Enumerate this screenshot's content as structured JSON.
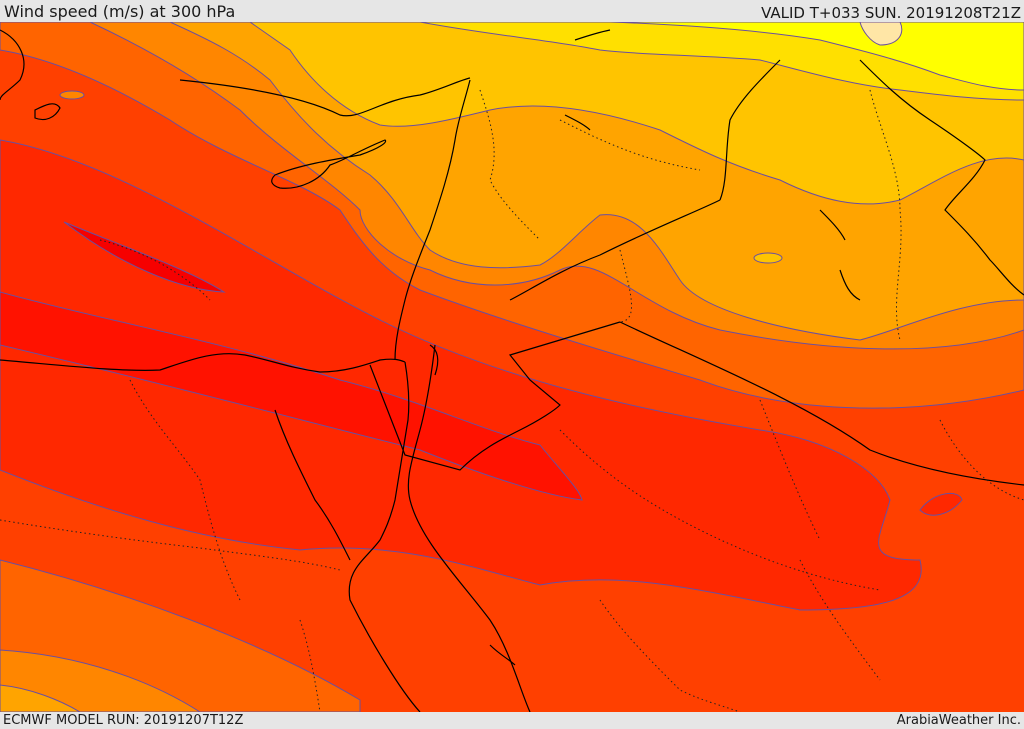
{
  "header": {
    "title": "Wind speed (m/s) at 300 hPa",
    "valid": "VALID T+033 SUN. 20191208T21Z"
  },
  "footer": {
    "model_run": "ECMWF MODEL RUN: 20191207T12Z",
    "brand": "ArabiaWeather Inc."
  },
  "map": {
    "parameter": "wind speed",
    "units": "m/s",
    "pressure_level_hPa": 300,
    "colors": {
      "very_light": "#ffff00",
      "light": "#ffe000",
      "pale_gold": "#ffc400",
      "gold": "#ffa400",
      "orange": "#ff8600",
      "dark_orange": "#ff6400",
      "orange_red": "#ff4000",
      "red_orange": "#ff2800",
      "red": "#ff1200",
      "deep_red": "#f60000",
      "contour": "#6a4fa0",
      "coast": "#000000"
    }
  }
}
